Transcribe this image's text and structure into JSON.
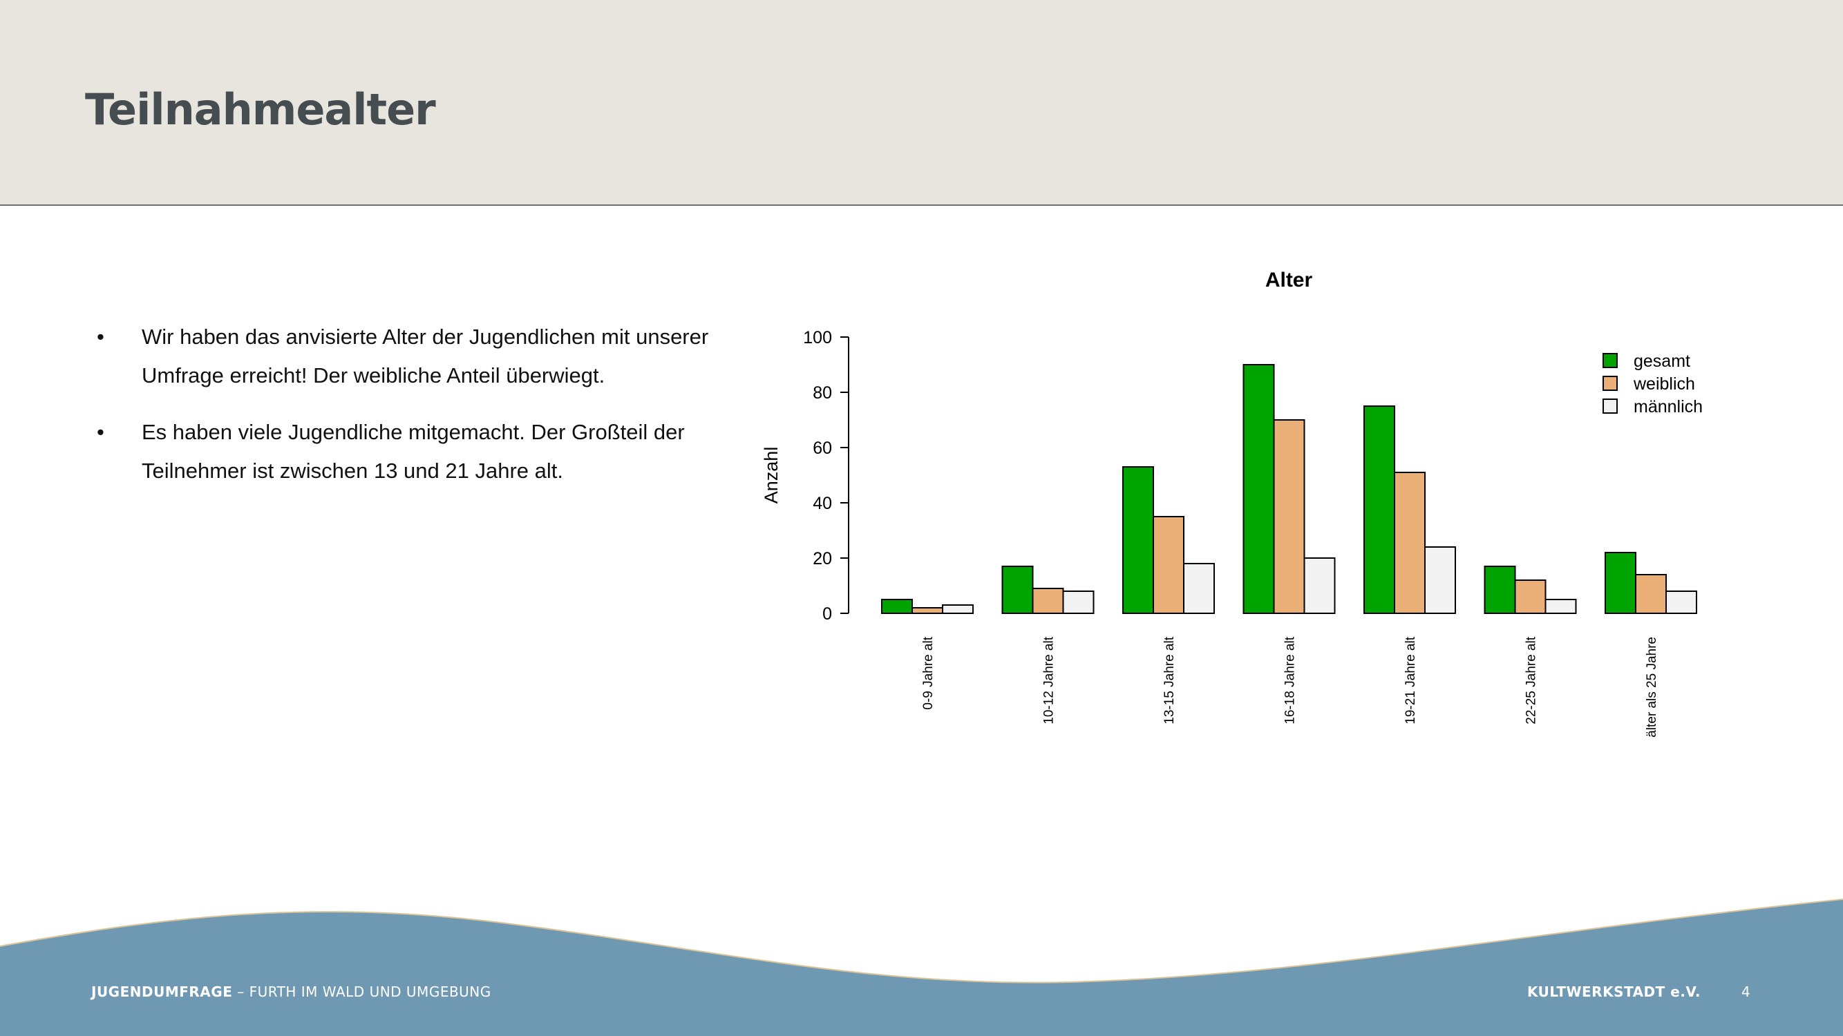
{
  "slide": {
    "title": "Teilnahmealter",
    "bullets": [
      "Wir haben das anvisierte Alter der Jugendlichen mit unserer Umfrage erreicht! Der weibliche Anteil überwiegt.",
      "Es haben viele Jugendliche mitgemacht. Der Großteil der Teilnehmer ist zwischen 13 und 21 Jahre alt."
    ],
    "bullet_symbol": "•"
  },
  "footer": {
    "left_bold": "JUGENDUMFRAGE",
    "left_rest": " – FURTH IM WALD UND UMGEBUNG",
    "right": "KULTWERKSTADT e.V.",
    "page": "4"
  },
  "colors": {
    "header_bg": "#e8e4de",
    "footer_blue": "#6f98b3",
    "gesamt": "#00a400",
    "weiblich": "#eab078",
    "maennlich": "#f2f2f2"
  },
  "chart_data": {
    "type": "bar",
    "title": "Alter",
    "ylabel": "Anzahl",
    "xlabel": "",
    "ylim": [
      0,
      100
    ],
    "yticks": [
      0,
      20,
      40,
      60,
      80,
      100
    ],
    "categories": [
      "0-9 Jahre alt",
      "10-12 Jahre alt",
      "13-15 Jahre alt",
      "16-18 Jahre alt",
      "19-21 Jahre alt",
      "22-25 Jahre alt",
      "älter als 25 Jahre"
    ],
    "series": [
      {
        "name": "gesamt",
        "color": "#00a400",
        "values": [
          5,
          17,
          53,
          90,
          75,
          17,
          22
        ]
      },
      {
        "name": "weiblich",
        "color": "#eab078",
        "values": [
          2,
          9,
          35,
          70,
          51,
          12,
          14
        ]
      },
      {
        "name": "männlich",
        "color": "#f2f2f2",
        "values": [
          3,
          8,
          18,
          20,
          24,
          5,
          8
        ]
      }
    ],
    "legend_position": "top-right",
    "grid": false
  }
}
